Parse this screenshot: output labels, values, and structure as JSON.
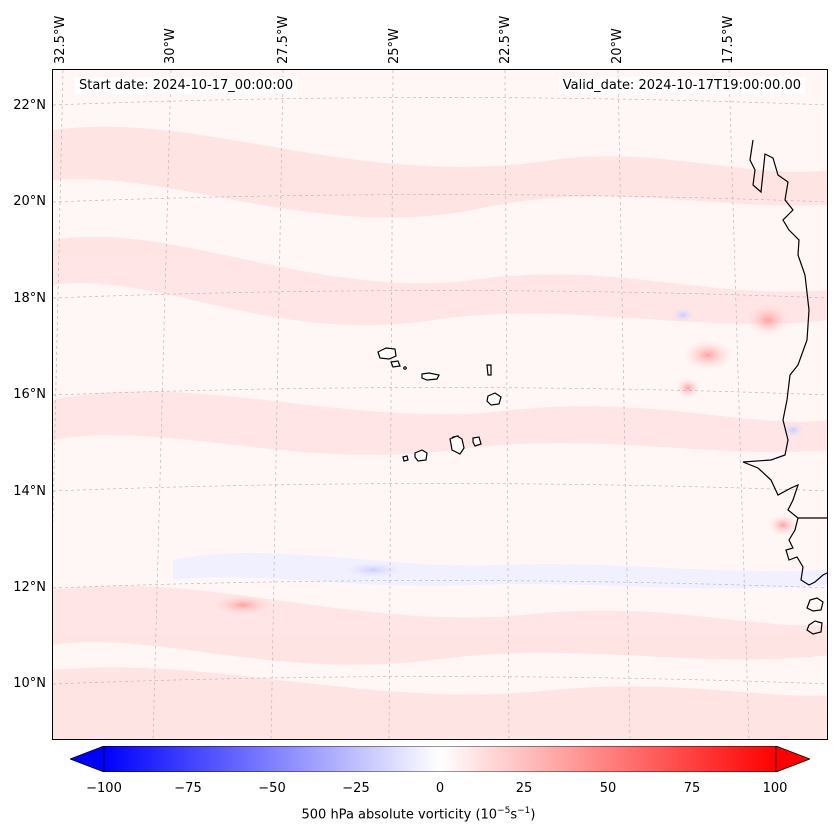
{
  "map": {
    "start_date": "Start date: 2024-10-17_00:00:00",
    "valid_date": "Valid_date: 2024-10-17T19:00:00.00",
    "lon_labels": [
      "32.5°W",
      "30°W",
      "27.5°W",
      "25°W",
      "22.5°W",
      "20°W",
      "17.5°W"
    ],
    "lat_labels": [
      "22°N",
      "20°N",
      "18°N",
      "16°N",
      "14°N",
      "12°N",
      "10°N"
    ],
    "colors": {
      "negative": "#0000ff",
      "positive": "#ff0000",
      "neutral": "#ffffff",
      "coast": "#000000"
    }
  },
  "colorbar": {
    "ticks": [
      "−100",
      "−75",
      "−50",
      "−25",
      "0",
      "25",
      "50",
      "75",
      "100"
    ],
    "label_prefix": "500 hPa absolute vorticity (10",
    "label_exp1": "−5",
    "label_mid": "s",
    "label_exp2": "−1",
    "label_suffix": ")"
  }
}
